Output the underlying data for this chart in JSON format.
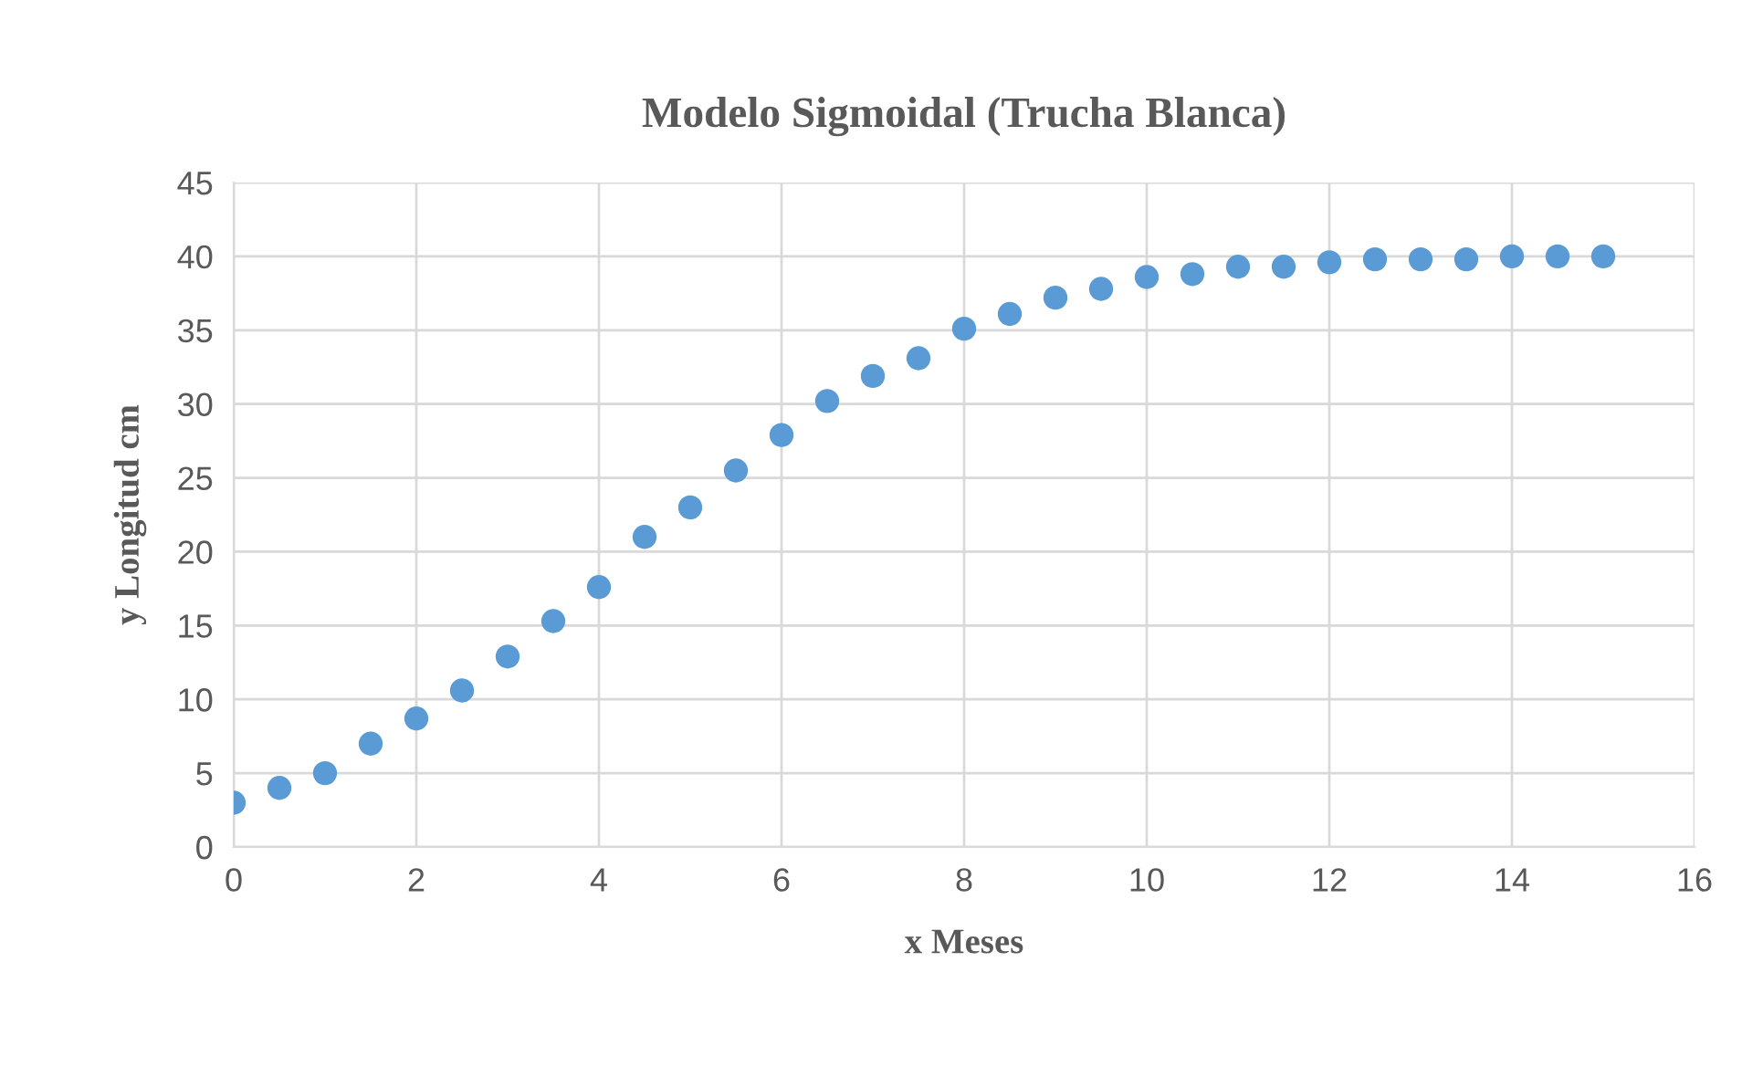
{
  "chart_data": {
    "type": "scatter",
    "title": "Modelo Sigmoidal (Trucha Blanca)",
    "xlabel": "x Meses",
    "ylabel": "y Longitud cm",
    "x": [
      0,
      0.5,
      1,
      1.5,
      2,
      2.5,
      3,
      3.5,
      4,
      4.5,
      5,
      5.5,
      6,
      6.5,
      7,
      7.5,
      8,
      8.5,
      9,
      9.5,
      10,
      10.5,
      11,
      11.5,
      12,
      12.5,
      13,
      13.5,
      14,
      14.5,
      15
    ],
    "series": [
      {
        "color": "#5b9bd5",
        "values": [
          3,
          4,
          5,
          7,
          8.7,
          10.6,
          12.9,
          15.3,
          17.6,
          21,
          23,
          25.5,
          27.9,
          30.2,
          31.9,
          33.1,
          35.1,
          36.1,
          37.2,
          37.8,
          38.6,
          38.8,
          39.3,
          39.3,
          39.6,
          39.8,
          39.8,
          39.8,
          40,
          40,
          40
        ]
      }
    ],
    "xlim": [
      0,
      16
    ],
    "xticks": [
      0,
      2,
      4,
      6,
      8,
      10,
      12,
      14,
      16
    ],
    "ylim": [
      0,
      45
    ],
    "yticks": [
      0,
      5,
      10,
      15,
      20,
      25,
      30,
      35,
      40,
      45
    ],
    "grid": true,
    "marker": "circle"
  }
}
